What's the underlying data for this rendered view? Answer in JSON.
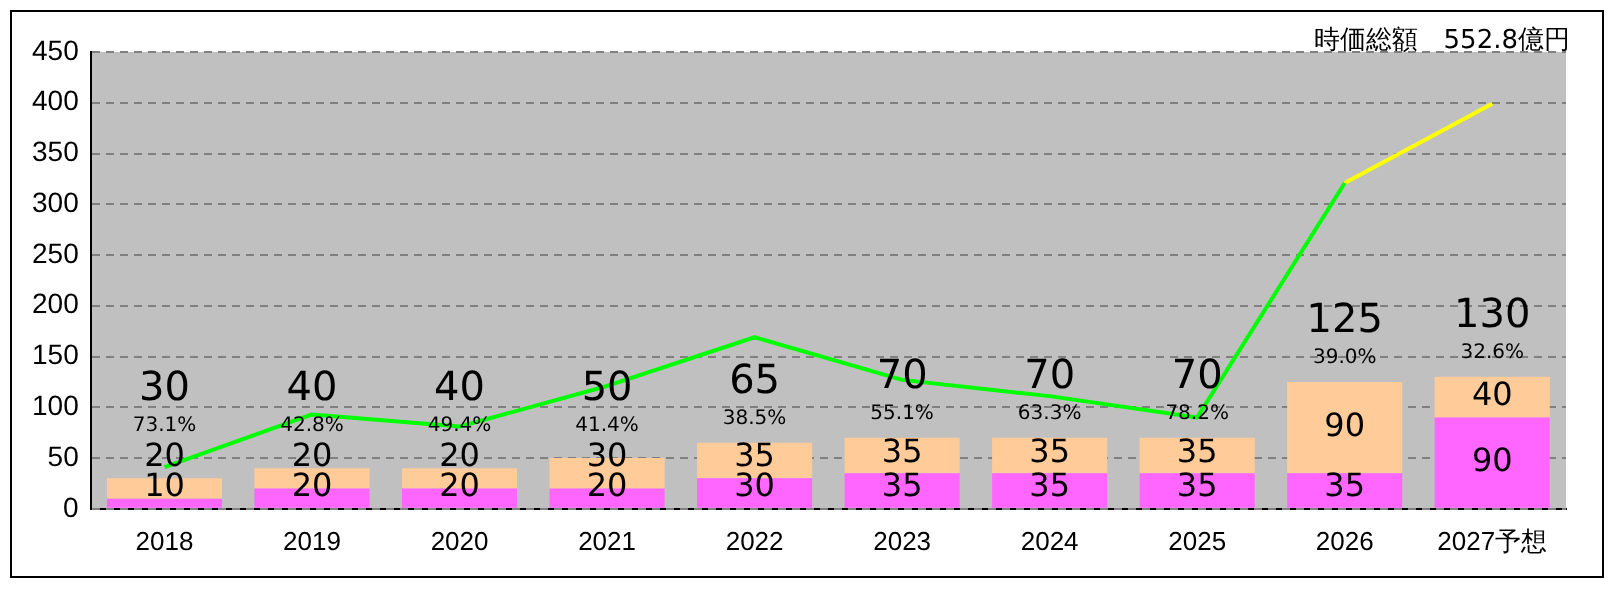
{
  "chart_data": {
    "type": "bar",
    "subtitle": "時価総額　552.8億円",
    "categories": [
      "2018",
      "2019",
      "2020",
      "2021",
      "2022",
      "2023",
      "2024",
      "2025",
      "2026",
      "2027予想"
    ],
    "stacked": true,
    "series": [
      {
        "color": "#ff66ff",
        "values": [
          10,
          20,
          20,
          20,
          30,
          35,
          35,
          35,
          35,
          90
        ],
        "value_labels": [
          "10",
          "20",
          "20",
          "20",
          "30",
          "35",
          "35",
          "35",
          "35",
          "90"
        ]
      },
      {
        "color": "#ffcc99",
        "values": [
          20,
          20,
          20,
          30,
          35,
          35,
          35,
          35,
          90,
          40
        ],
        "value_labels": [
          "20",
          "20",
          "20",
          "30",
          "35",
          "35",
          "35",
          "35",
          "90",
          "40"
        ]
      },
      {
        "type": "line",
        "color": "#00ff00",
        "values": [
          41,
          93,
          81,
          121,
          169,
          127,
          111,
          90,
          321,
          null
        ]
      },
      {
        "type": "line",
        "color": "#ffff00",
        "values": [
          null,
          null,
          null,
          null,
          null,
          null,
          null,
          null,
          321,
          399
        ]
      }
    ],
    "totals": [
      "30",
      "40",
      "40",
      "50",
      "65",
      "70",
      "70",
      "70",
      "125",
      "130"
    ],
    "annotations": [
      "73.1%",
      "42.8%",
      "49.4%",
      "41.4%",
      "38.5%",
      "55.1%",
      "63.3%",
      "78.2%",
      "39.0%",
      "32.6%"
    ],
    "ylim": [
      0,
      450
    ],
    "yticks": [
      0,
      50,
      100,
      150,
      200,
      250,
      300,
      350,
      400,
      450
    ],
    "grid": "y",
    "legend": false,
    "marker": "none"
  }
}
